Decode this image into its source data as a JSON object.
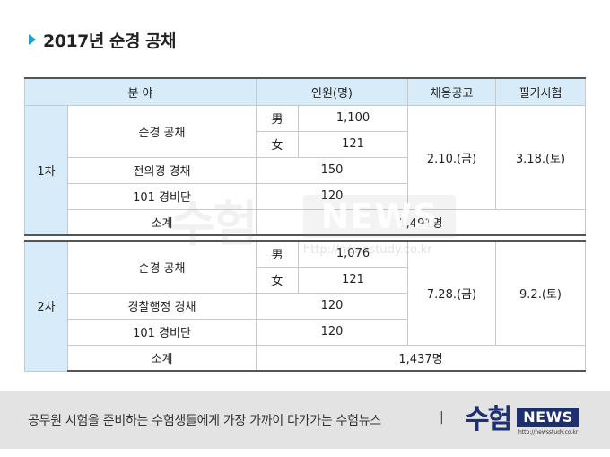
{
  "title": "2017년 순경 공채",
  "table": {
    "headers": {
      "field": "분 야",
      "count": "인원(명)",
      "announce": "채용공고",
      "exam": "필기시험"
    },
    "rounds": [
      {
        "label": "1차",
        "general_label": "순경 공채",
        "male_label": "男",
        "male_count": "1,100",
        "female_label": "女",
        "female_count": "121",
        "announce": "2.10.(금)",
        "exam": "3.18.(토)",
        "row3_label": "전의경 경채",
        "row3_count": "150",
        "row4_label": "101 경비단",
        "row4_count": "120",
        "subtotal_label": "소계",
        "subtotal": "1,491명"
      },
      {
        "label": "2차",
        "general_label": "순경 공채",
        "male_label": "男",
        "male_count": "1,076",
        "female_label": "女",
        "female_count": "121",
        "announce": "7.28.(금)",
        "exam": "9.2.(토)",
        "row3_label": "경찰행정 경채",
        "row3_count": "120",
        "row4_label": "101 경비단",
        "row4_count": "120",
        "subtotal_label": "소계",
        "subtotal": "1,437명"
      }
    ]
  },
  "watermark": {
    "mark": "수험",
    "news": "NEWS",
    "url": "http://newsstudy.co.kr"
  },
  "footer": {
    "slogan": "공무원 시험을 준비하는 수험생들에게 가장 가까이 다가가는 수험뉴스",
    "separator": "|",
    "logo_mark": "수험",
    "logo_news": "NEWS",
    "logo_url": "http://newsstudy.co.kr"
  },
  "colors": {
    "accent": "#1a9fd9",
    "header_bg": "#d7ecf8",
    "footer_bg": "#e3e3e3",
    "logo_navy": "#1d2f6f"
  }
}
